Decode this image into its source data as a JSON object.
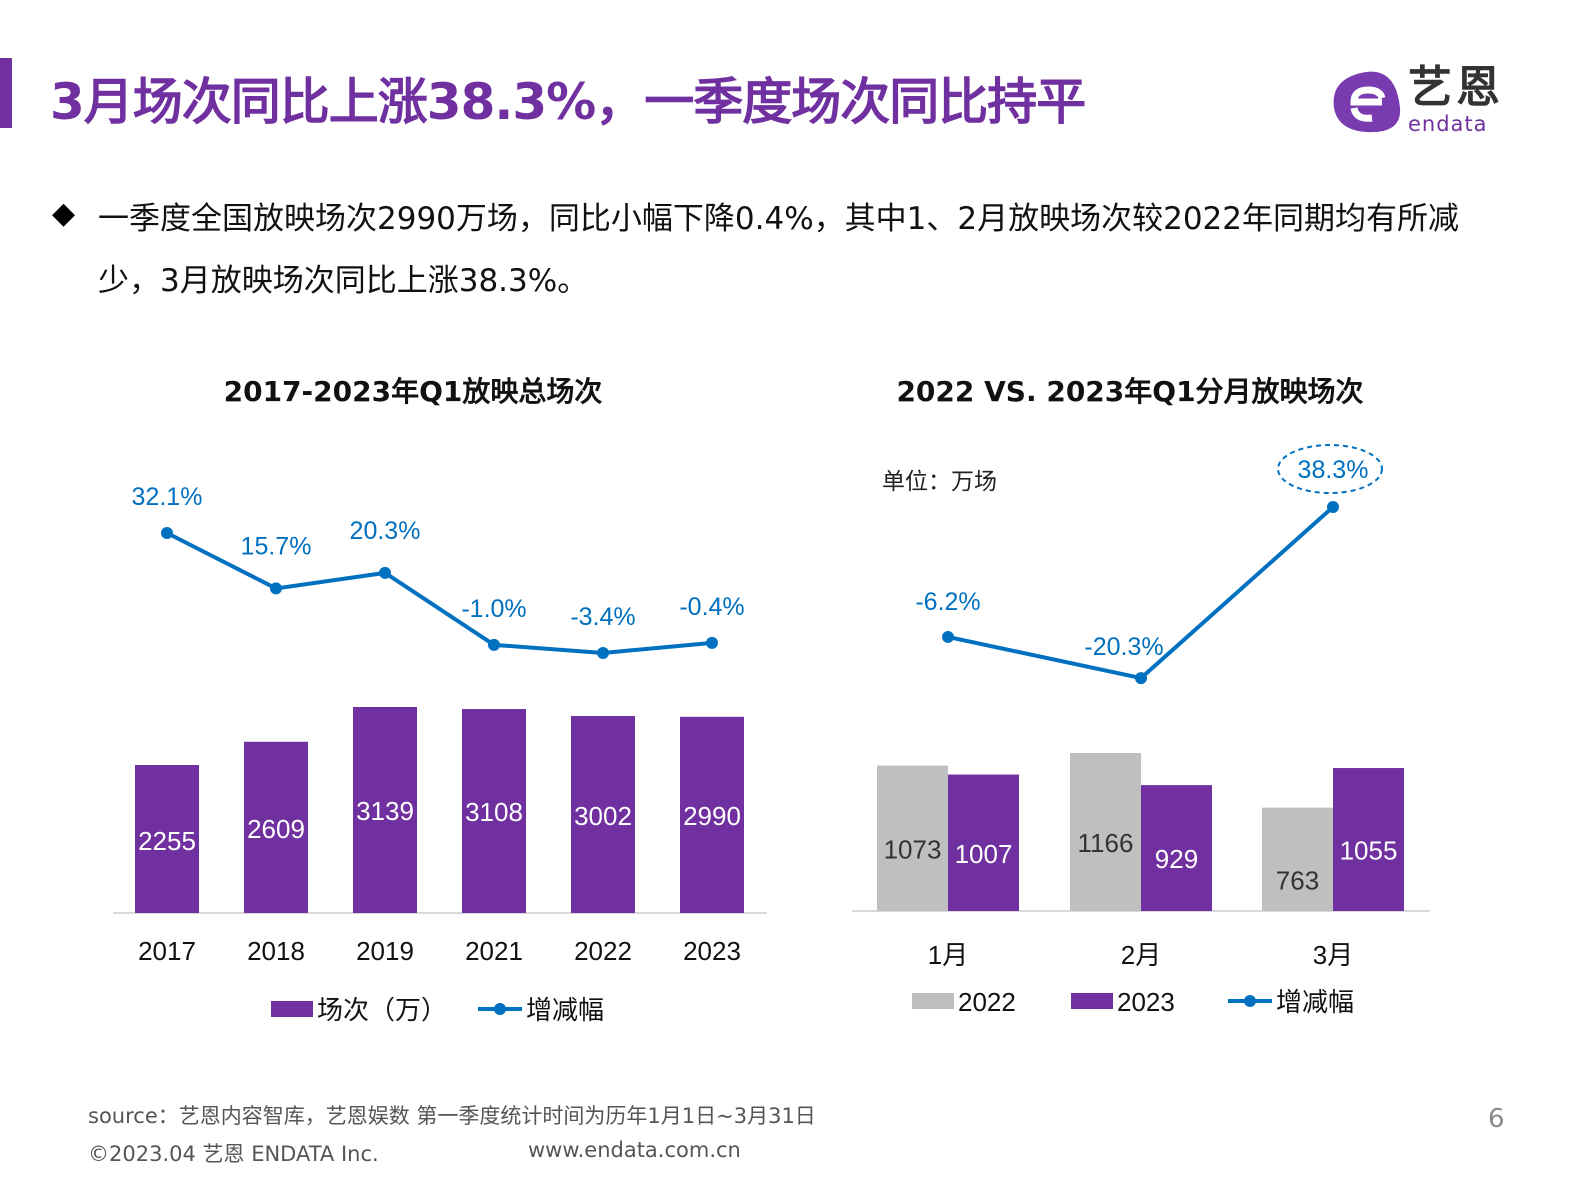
{
  "header": {
    "title": "3月场次同比上涨38.3%，一季度场次同比持平",
    "logo_cn": "艺恩",
    "logo_en": "endata"
  },
  "summary": {
    "bullet": "◆",
    "text": "一季度全国放映场次2990万场，同比小幅下降0.4%，其中1、2月放映场次较2022年同期均有所减少，3月放映场次同比上涨38.3%。"
  },
  "chart_data": [
    {
      "type": "bar+line",
      "title": "2017-2023年Q1放映总场次",
      "categories": [
        "2017",
        "2018",
        "2019",
        "2021",
        "2022",
        "2023"
      ],
      "series": [
        {
          "name": "场次（万）",
          "type": "bar",
          "color": "#7030a0",
          "values": [
            2255,
            2609,
            3139,
            3108,
            3002,
            2990
          ]
        },
        {
          "name": "增减幅",
          "type": "line",
          "color": "#0070c0",
          "values": [
            32.1,
            15.7,
            20.3,
            -1.0,
            -3.4,
            -0.4
          ],
          "labels": [
            "32.1%",
            "15.7%",
            "20.3%",
            "-1.0%",
            "-3.4%",
            "-0.4%"
          ]
        }
      ],
      "legend": "bottom"
    },
    {
      "type": "bar+line",
      "title": "2022 VS. 2023年Q1分月放映场次",
      "unit": "单位：万场",
      "categories": [
        "1月",
        "2月",
        "3月"
      ],
      "series": [
        {
          "name": "2022",
          "type": "bar",
          "color": "#bfbfbf",
          "values": [
            1073,
            1166,
            763
          ]
        },
        {
          "name": "2023",
          "type": "bar",
          "color": "#7030a0",
          "values": [
            1007,
            929,
            1055
          ]
        },
        {
          "name": "增减幅",
          "type": "line",
          "color": "#0070c0",
          "values": [
            -6.2,
            -20.3,
            38.3
          ],
          "labels": [
            "-6.2%",
            "-20.3%",
            "38.3%"
          ]
        }
      ],
      "legend": "bottom",
      "highlight": "38.3%"
    }
  ],
  "footer": {
    "source": "source：艺恩内容智库，艺恩娱数    第一季度统计时间为历年1月1日~3月31日",
    "copyright": "©2023.04 艺恩 ENDATA Inc.",
    "website": "www.endata.com.cn",
    "page": "6"
  }
}
